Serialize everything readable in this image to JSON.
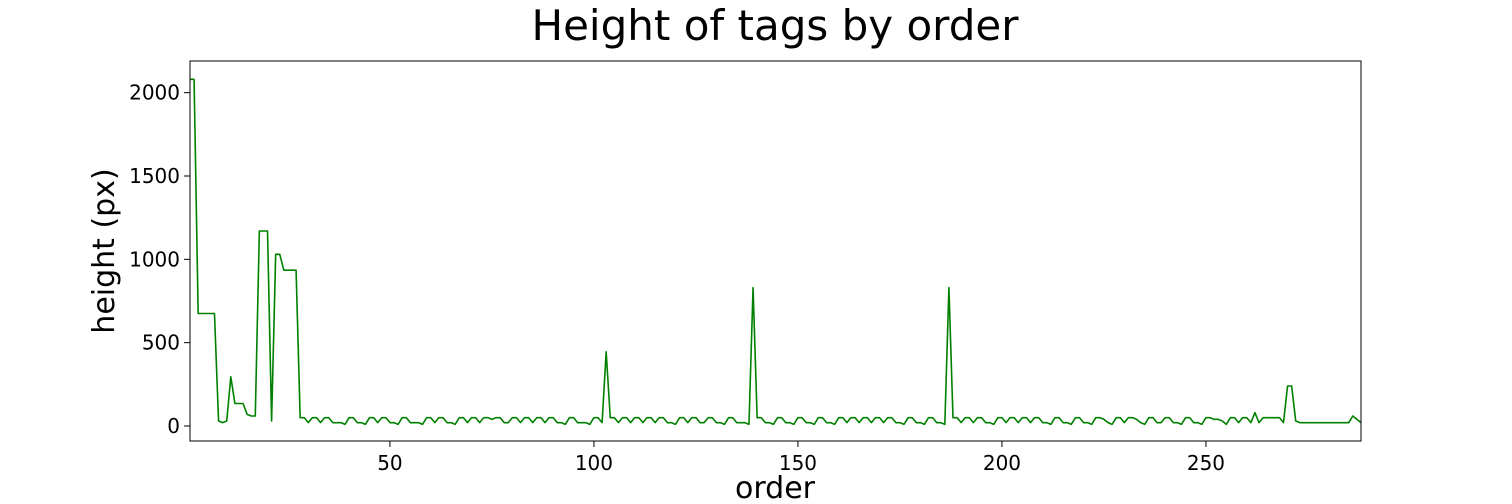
{
  "chart_data": {
    "type": "line",
    "title": "Height of tags by order",
    "xlabel": "order",
    "ylabel": "height (px)",
    "xlim": [
      1,
      288
    ],
    "ylim": [
      -90,
      2190
    ],
    "xticks": [
      50,
      100,
      150,
      200,
      250
    ],
    "yticks": [
      0,
      500,
      1000,
      1500,
      2000
    ],
    "grid": false,
    "line_color": "#008000",
    "series": [
      {
        "x": [
          1,
          2,
          3,
          4,
          5,
          6,
          7,
          8,
          9,
          10,
          11,
          12,
          13,
          14,
          15,
          16,
          17,
          18,
          19,
          20,
          21,
          22,
          23,
          24,
          25,
          26,
          27,
          28,
          29,
          30,
          31,
          32,
          33,
          34,
          35,
          36,
          37,
          38,
          39,
          40,
          41,
          42,
          43,
          44,
          45,
          46,
          47,
          48,
          49,
          50,
          51,
          52,
          53,
          54,
          55,
          56,
          57,
          58,
          59,
          60,
          61,
          62,
          63,
          64,
          65,
          66,
          67,
          68,
          69,
          70,
          71,
          72,
          73,
          74,
          75,
          76,
          77,
          78,
          79,
          80,
          81,
          82,
          83,
          84,
          85,
          86,
          87,
          88,
          89,
          90,
          91,
          92,
          93,
          94,
          95,
          96,
          97,
          98,
          99,
          100,
          101,
          102,
          103,
          104,
          105,
          106,
          107,
          108,
          109,
          110,
          111,
          112,
          113,
          114,
          115,
          116,
          117,
          118,
          119,
          120,
          121,
          122,
          123,
          124,
          125,
          126,
          127,
          128,
          129,
          130,
          131,
          132,
          133,
          134,
          135,
          136,
          137,
          138,
          139,
          140,
          141,
          142,
          143,
          144,
          145,
          146,
          147,
          148,
          149,
          150,
          151,
          152,
          153,
          154,
          155,
          156,
          157,
          158,
          159,
          160,
          161,
          162,
          163,
          164,
          165,
          166,
          167,
          168,
          169,
          170,
          171,
          172,
          173,
          174,
          175,
          176,
          177,
          178,
          179,
          180,
          181,
          182,
          183,
          184,
          185,
          186,
          187,
          188,
          189,
          190,
          191,
          192,
          193,
          194,
          195,
          196,
          197,
          198,
          199,
          200,
          201,
          202,
          203,
          204,
          205,
          206,
          207,
          208,
          209,
          210,
          211,
          212,
          213,
          214,
          215,
          216,
          217,
          218,
          219,
          220,
          221,
          222,
          223,
          224,
          225,
          226,
          227,
          228,
          229,
          230,
          231,
          232,
          233,
          234,
          235,
          236,
          237,
          238,
          239,
          240,
          241,
          242,
          243,
          244,
          245,
          246,
          247,
          248,
          249,
          250,
          251,
          252,
          253,
          254,
          255,
          256,
          257,
          258,
          259,
          260,
          261,
          262,
          263,
          264,
          265,
          266,
          267,
          268,
          269,
          270,
          271,
          272,
          273,
          274,
          275,
          276,
          277,
          278,
          279,
          280,
          281,
          282,
          283,
          284,
          285,
          286,
          287,
          288
        ],
        "y": [
          2080,
          2080,
          675,
          675,
          675,
          675,
          675,
          30,
          20,
          30,
          295,
          135,
          135,
          135,
          70,
          60,
          60,
          1170,
          1170,
          1170,
          30,
          1030,
          1030,
          935,
          935,
          935,
          935,
          50,
          50,
          20,
          50,
          50,
          20,
          50,
          50,
          20,
          20,
          20,
          10,
          50,
          50,
          20,
          20,
          10,
          50,
          50,
          20,
          50,
          50,
          20,
          20,
          10,
          50,
          50,
          20,
          20,
          20,
          10,
          50,
          50,
          20,
          50,
          50,
          20,
          20,
          10,
          50,
          50,
          20,
          50,
          50,
          20,
          50,
          50,
          40,
          50,
          50,
          20,
          20,
          50,
          50,
          20,
          50,
          50,
          20,
          50,
          50,
          20,
          50,
          50,
          20,
          20,
          10,
          50,
          50,
          20,
          20,
          20,
          10,
          50,
          50,
          20,
          445,
          50,
          50,
          20,
          50,
          50,
          20,
          50,
          50,
          20,
          50,
          50,
          20,
          50,
          50,
          20,
          20,
          10,
          50,
          50,
          20,
          50,
          50,
          20,
          20,
          50,
          50,
          20,
          20,
          10,
          50,
          50,
          20,
          20,
          20,
          10,
          830,
          50,
          50,
          20,
          20,
          10,
          50,
          50,
          20,
          20,
          10,
          50,
          50,
          20,
          20,
          10,
          50,
          50,
          20,
          20,
          10,
          50,
          50,
          20,
          50,
          50,
          20,
          50,
          50,
          20,
          50,
          50,
          20,
          50,
          50,
          20,
          20,
          10,
          50,
          50,
          20,
          20,
          10,
          50,
          50,
          20,
          20,
          10,
          830,
          50,
          50,
          20,
          50,
          50,
          20,
          50,
          50,
          20,
          20,
          10,
          50,
          50,
          20,
          50,
          50,
          20,
          50,
          50,
          20,
          50,
          50,
          20,
          20,
          10,
          50,
          50,
          20,
          20,
          10,
          50,
          50,
          20,
          20,
          10,
          50,
          50,
          40,
          20,
          10,
          50,
          50,
          20,
          50,
          50,
          40,
          20,
          10,
          50,
          50,
          20,
          20,
          50,
          50,
          20,
          20,
          10,
          50,
          50,
          20,
          20,
          10,
          50,
          50,
          40,
          40,
          30,
          10,
          50,
          50,
          20,
          50,
          50,
          20,
          80,
          20,
          50,
          50,
          50,
          50,
          50,
          20,
          240,
          240,
          30,
          20,
          20,
          20,
          20,
          20,
          20,
          20,
          20,
          20,
          20,
          20,
          20,
          20,
          60,
          40,
          20
        ]
      }
    ]
  }
}
